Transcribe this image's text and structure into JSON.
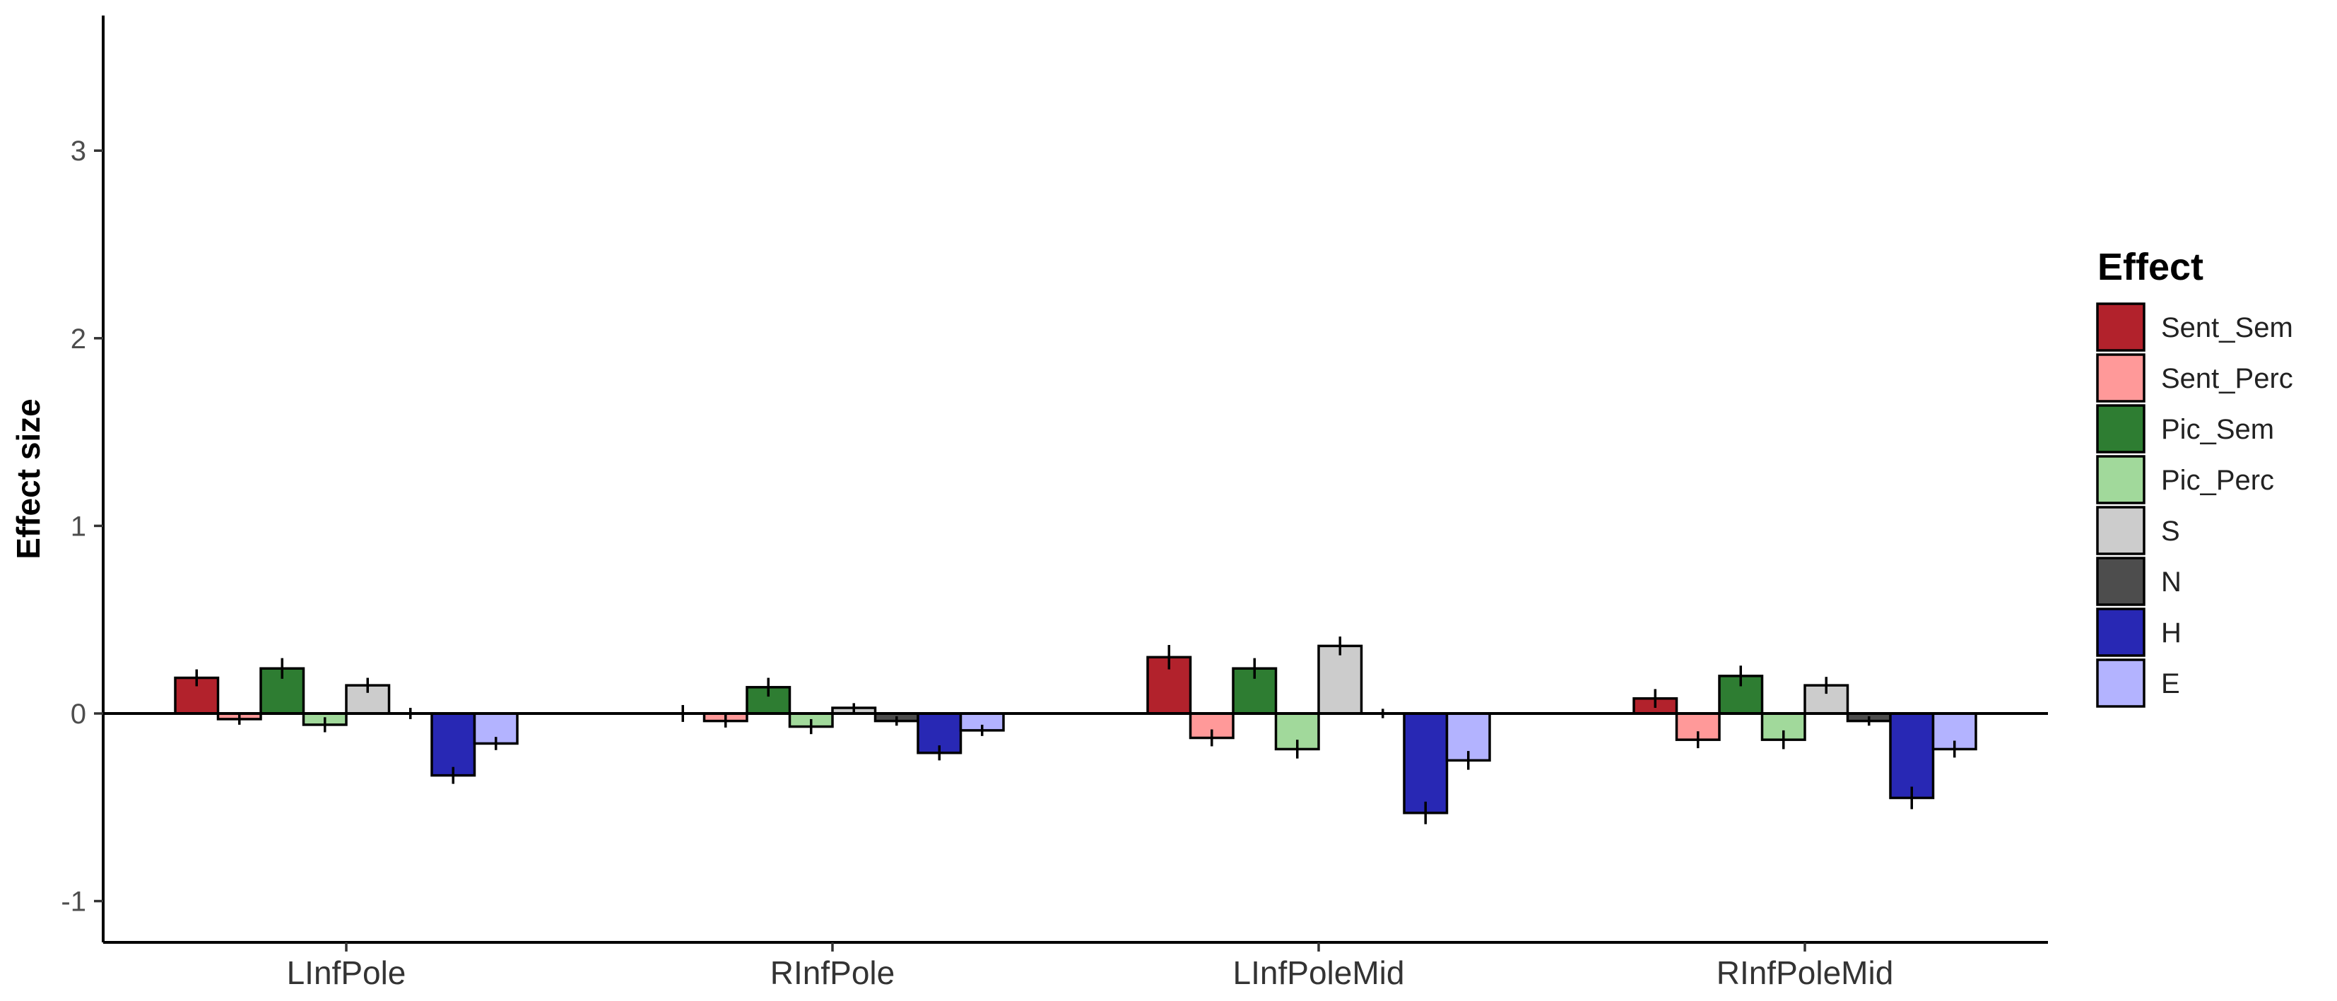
{
  "chart_data": {
    "type": "bar",
    "ylabel": "Effect size",
    "xlabel": "",
    "ylim": [
      -1.22,
      3.72
    ],
    "yticks": [
      -1,
      0,
      1,
      2,
      3
    ],
    "ytick_labels": [
      "-1",
      "0",
      "1",
      "2",
      "3"
    ],
    "grid": false,
    "legend": {
      "title": "Effect",
      "placement": "right"
    },
    "categories": [
      "LInfPole",
      "RInfPole",
      "LInfPoleMid",
      "RInfPoleMid"
    ],
    "series": [
      {
        "name": "Sent_Sem",
        "color": "#b2222c",
        "values": [
          0.19,
          0.0,
          0.3,
          0.08
        ],
        "errors": [
          0.045,
          0.045,
          0.065,
          0.05
        ]
      },
      {
        "name": "Sent_Perc",
        "color": "#ff9999",
        "values": [
          -0.03,
          -0.04,
          -0.13,
          -0.14
        ],
        "errors": [
          0.03,
          0.035,
          0.045,
          0.045
        ]
      },
      {
        "name": "Pic_Sem",
        "color": "#2e7d32",
        "values": [
          0.24,
          0.14,
          0.24,
          0.2
        ],
        "errors": [
          0.055,
          0.05,
          0.055,
          0.055
        ]
      },
      {
        "name": "Pic_Perc",
        "color": "#a1d99b",
        "values": [
          -0.06,
          -0.07,
          -0.19,
          -0.14
        ],
        "errors": [
          0.04,
          0.04,
          0.05,
          0.05
        ]
      },
      {
        "name": "S",
        "color": "#cccccc",
        "values": [
          0.15,
          0.03,
          0.36,
          0.15
        ],
        "errors": [
          0.04,
          0.025,
          0.05,
          0.045
        ]
      },
      {
        "name": "N",
        "color": "#4d4d4d",
        "values": [
          0.0,
          -0.04,
          0.0,
          -0.04
        ],
        "errors": [
          0.03,
          0.025,
          0.025,
          0.025
        ]
      },
      {
        "name": "H",
        "color": "#2828b4",
        "values": [
          -0.33,
          -0.21,
          -0.53,
          -0.45
        ],
        "errors": [
          0.045,
          0.04,
          0.06,
          0.06
        ]
      },
      {
        "name": "E",
        "color": "#b3b3ff",
        "values": [
          -0.16,
          -0.09,
          -0.25,
          -0.19
        ],
        "errors": [
          0.035,
          0.03,
          0.05,
          0.045
        ]
      }
    ]
  }
}
